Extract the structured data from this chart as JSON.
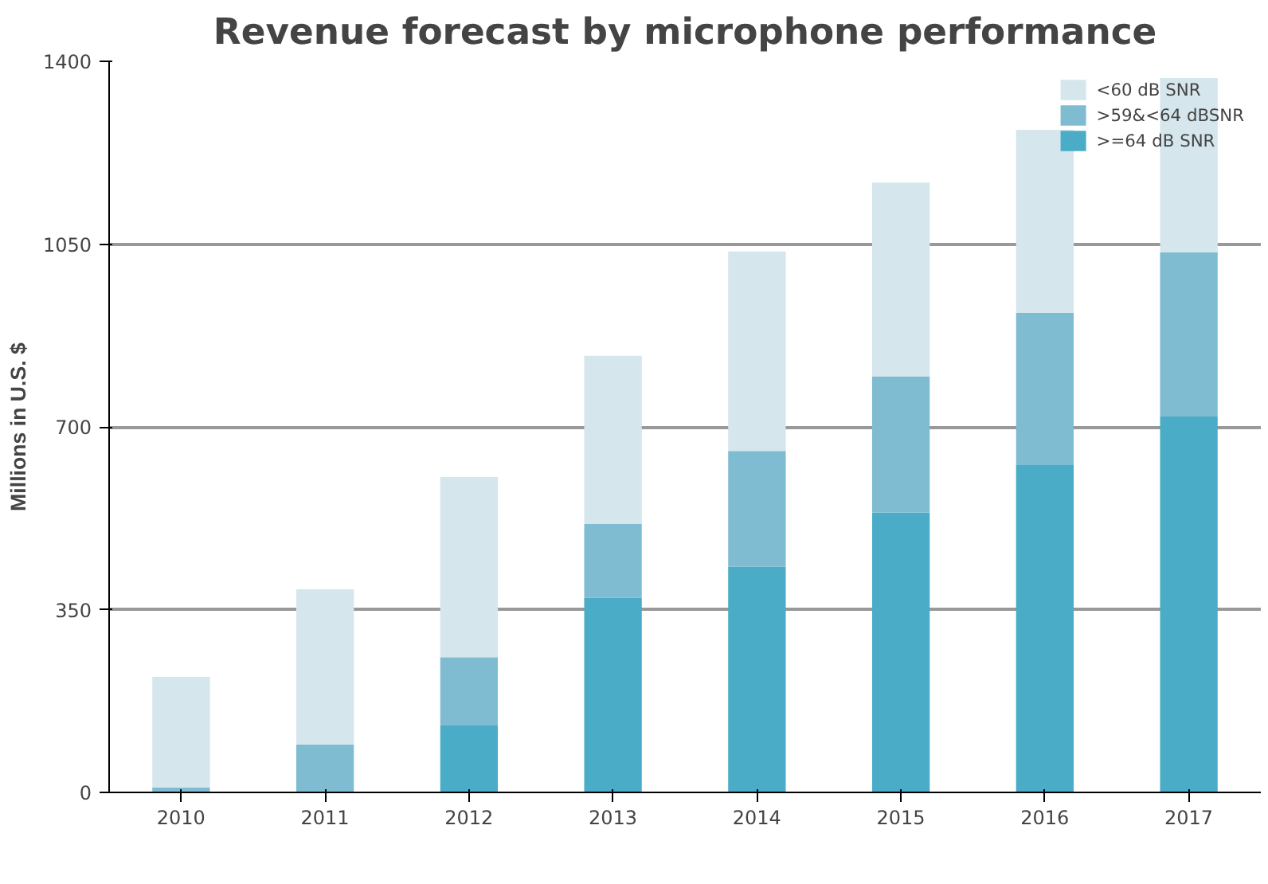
{
  "chart_data": {
    "type": "bar",
    "title": "Revenue forecast by microphone performance",
    "ylabel": "Millions in U.S. $",
    "categories": [
      "2010",
      "2011",
      "2012",
      "2013",
      "2014",
      "2015",
      "2016",
      "2017"
    ],
    "stacked": true,
    "series": [
      {
        "name": ">=64 dB SNR",
        "color": "#4aacc6",
        "values": [
          0,
          0,
          128,
          373,
          432,
          536,
          628,
          720
        ]
      },
      {
        "name": ">59&<64 dBSNR",
        "color": "#7fbcd2",
        "values": [
          9,
          92,
          131,
          141,
          222,
          261,
          290,
          314
        ]
      },
      {
        "name": "<60 dB SNR",
        "color": "#d5e6ed",
        "values": [
          212,
          297,
          345,
          322,
          382,
          371,
          351,
          334
        ]
      }
    ],
    "ylim": [
      0,
      1400
    ],
    "yticks": [
      0,
      350,
      700,
      1050,
      1400
    ],
    "grid": "y",
    "legend": "top right"
  }
}
